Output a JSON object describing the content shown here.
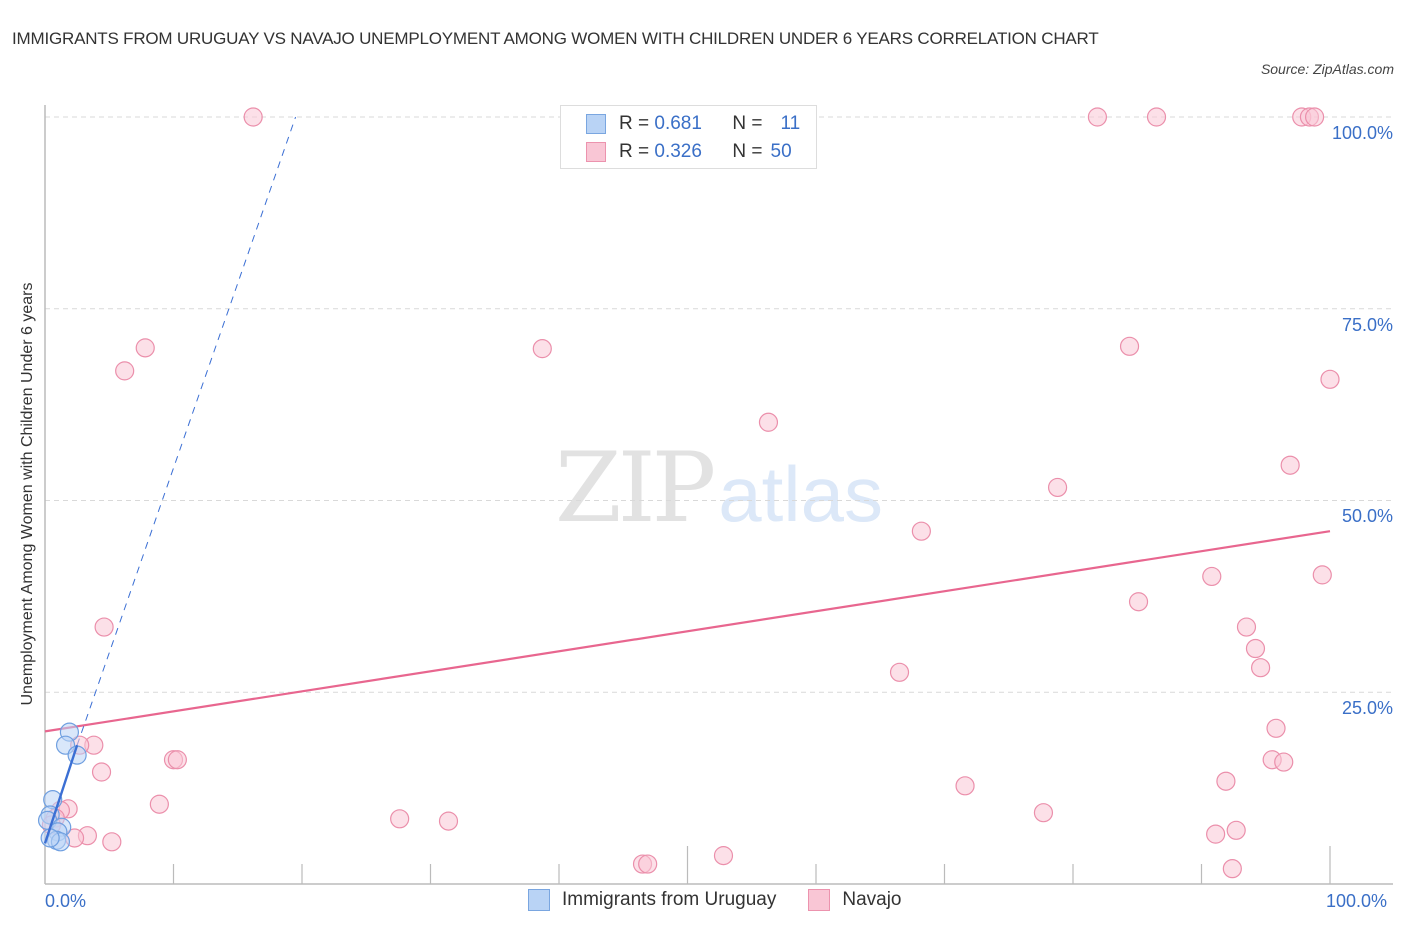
{
  "header": {
    "title": "IMMIGRANTS FROM URUGUAY VS NAVAJO UNEMPLOYMENT AMONG WOMEN WITH CHILDREN UNDER 6 YEARS CORRELATION CHART",
    "source": "Source: ZipAtlas.com"
  },
  "watermark": {
    "zip": "ZIP",
    "atlas": "atlas"
  },
  "stats_box": {
    "rows": [
      {
        "r_label": "R =",
        "r_value": "0.681",
        "n_label": "N =",
        "n_value": "11",
        "color": "#b9d3f5"
      },
      {
        "r_label": "R =",
        "r_value": "0.326",
        "n_label": "N =",
        "n_value": "50",
        "color": "#f9c6d5"
      }
    ]
  },
  "axes": {
    "ylabel": "Unemployment Among Women with Children Under 6 years",
    "y_ticks": [
      "100.0%",
      "75.0%",
      "50.0%",
      "25.0%"
    ],
    "x_ticks": [
      "0.0%",
      "100.0%"
    ]
  },
  "legend": {
    "items": [
      {
        "label": "Immigrants from Uruguay",
        "color": "#b9d3f5"
      },
      {
        "label": "Navajo",
        "color": "#f9c6d5"
      }
    ]
  },
  "colors": {
    "blue_fill": "#b9d3f5",
    "blue_stroke": "#6f9fe0",
    "blue_line": "#3b6fd4",
    "pink_fill": "#f9c6d5",
    "pink_stroke": "#eb8fab",
    "pink_line": "#e8668f",
    "tick_text": "#3a6fc7",
    "grid": "#d9d9d9"
  },
  "chart_data": {
    "type": "scatter",
    "title": "Immigrants from Uruguay vs Navajo Unemployment Among Women with Children Under 6 years Correlation Chart",
    "xlabel": "",
    "ylabel": "Unemployment Among Women with Children Under 6 years",
    "xlim": [
      0,
      100
    ],
    "ylim": [
      0,
      100
    ],
    "grid": true,
    "legend_position": "bottom",
    "series": [
      {
        "name": "Immigrants from Uruguay",
        "R": 0.681,
        "N": 11,
        "points": [
          [
            1.9,
            19.8
          ],
          [
            1.6,
            18.1
          ],
          [
            2.5,
            16.8
          ],
          [
            0.6,
            11.0
          ],
          [
            0.4,
            9.0
          ],
          [
            0.2,
            8.3
          ],
          [
            1.3,
            7.4
          ],
          [
            1.0,
            6.8
          ],
          [
            0.9,
            5.7
          ],
          [
            1.2,
            5.5
          ],
          [
            0.4,
            6.0
          ]
        ],
        "trend_solid": [
          [
            0,
            5.3
          ],
          [
            2.5,
            18.1
          ]
        ],
        "trend_dashed": [
          [
            2.5,
            18.1
          ],
          [
            19.5,
            100
          ]
        ]
      },
      {
        "name": "Navajo",
        "R": 0.326,
        "N": 50,
        "points": [
          [
            16.2,
            100
          ],
          [
            81.9,
            100
          ],
          [
            86.5,
            100
          ],
          [
            97.8,
            100
          ],
          [
            98.4,
            100
          ],
          [
            98.8,
            100
          ],
          [
            7.8,
            69.9
          ],
          [
            6.2,
            66.9
          ],
          [
            38.7,
            69.8
          ],
          [
            84.4,
            70.1
          ],
          [
            100,
            65.8
          ],
          [
            56.3,
            60.2
          ],
          [
            96.9,
            54.6
          ],
          [
            78.8,
            51.7
          ],
          [
            68.2,
            46.0
          ],
          [
            90.8,
            40.1
          ],
          [
            99.4,
            40.3
          ],
          [
            85.1,
            36.8
          ],
          [
            93.5,
            33.5
          ],
          [
            94.2,
            30.7
          ],
          [
            94.6,
            28.2
          ],
          [
            4.6,
            33.5
          ],
          [
            66.5,
            27.6
          ],
          [
            95.8,
            20.3
          ],
          [
            95.5,
            16.2
          ],
          [
            96.4,
            15.9
          ],
          [
            3.8,
            18.1
          ],
          [
            2.7,
            18.1
          ],
          [
            10.0,
            16.2
          ],
          [
            10.3,
            16.2
          ],
          [
            4.4,
            14.6
          ],
          [
            91.9,
            13.4
          ],
          [
            71.6,
            12.8
          ],
          [
            8.9,
            10.4
          ],
          [
            77.7,
            9.3
          ],
          [
            27.6,
            8.5
          ],
          [
            31.4,
            8.2
          ],
          [
            92.7,
            7.0
          ],
          [
            91.1,
            6.5
          ],
          [
            52.8,
            3.7
          ],
          [
            46.5,
            2.6
          ],
          [
            46.9,
            2.6
          ],
          [
            92.4,
            2.0
          ],
          [
            5.2,
            5.5
          ],
          [
            3.3,
            6.3
          ],
          [
            2.3,
            6.0
          ],
          [
            1.8,
            9.8
          ],
          [
            1.2,
            9.6
          ],
          [
            0.8,
            8.6
          ],
          [
            0.5,
            7.7
          ]
        ],
        "trend": [
          [
            0,
            19.9
          ],
          [
            100,
            46.0
          ]
        ]
      }
    ]
  }
}
